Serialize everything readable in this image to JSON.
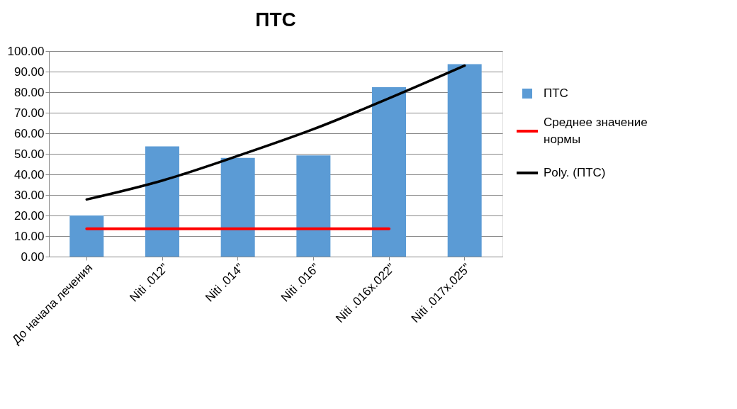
{
  "chart_data": {
    "type": "bar",
    "title": "ПТС",
    "categories": [
      "До начала лечения",
      "Niti .012”",
      "Niti .014”",
      "Niti .016”",
      "Niti .016x.022”",
      "Niti .017x.025”"
    ],
    "series": [
      {
        "name": "ПТС",
        "color": "#5b9bd5",
        "values": [
          20.0,
          53.6,
          48.0,
          49.2,
          82.4,
          93.6
        ]
      },
      {
        "name": "Среднее значение нормы",
        "type": "line",
        "color": "#ff0000",
        "values": [
          13.5,
          13.5,
          13.5,
          13.5,
          13.5,
          null
        ]
      },
      {
        "name": "Poly. (ПТС)",
        "type": "line",
        "color": "#000000",
        "values": [
          27.8,
          37.0,
          49.0,
          62.0,
          77.0,
          92.9
        ]
      }
    ],
    "ylim": [
      0,
      100
    ],
    "yticks": [
      {
        "value": 0,
        "label": "0.00"
      },
      {
        "value": 10,
        "label": "10.00"
      },
      {
        "value": 20,
        "label": "20.00"
      },
      {
        "value": 30,
        "label": "30.00"
      },
      {
        "value": 40,
        "label": "40.00"
      },
      {
        "value": 50,
        "label": "50.00"
      },
      {
        "value": 60,
        "label": "60.00"
      },
      {
        "value": 70,
        "label": "70.00"
      },
      {
        "value": 80,
        "label": "80.00"
      },
      {
        "value": 90,
        "label": "90.00"
      },
      {
        "value": 100,
        "label": "100.00"
      }
    ],
    "grid": "y",
    "legend": "right"
  }
}
